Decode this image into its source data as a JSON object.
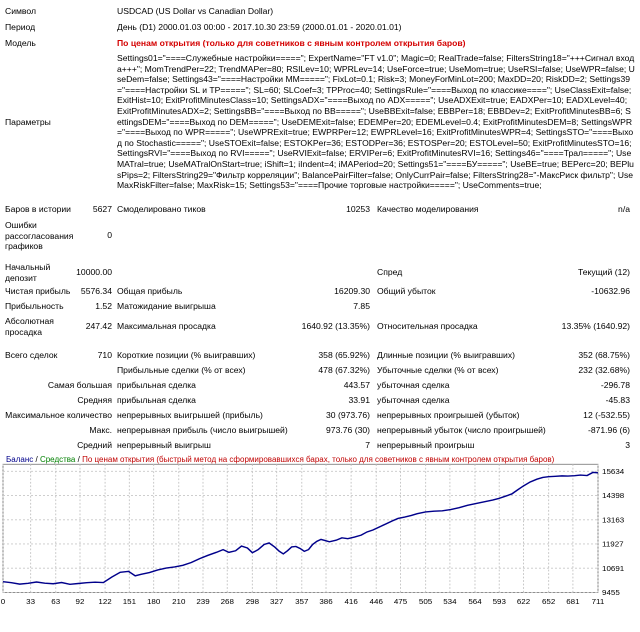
{
  "report": {
    "symbol_label": "Символ",
    "symbol_value": "USDCAD (US Dollar vs Canadian Dollar)",
    "period_label": "Период",
    "period_value": "День (D1) 2000.01.03 00:00 - 2017.10.30 23:59 (2000.01.01 - 2020.01.01)",
    "model_label": "Модель",
    "model_value": "По ценам открытия (только для советников с явным контролем открытия баров)",
    "params_label": "Параметры",
    "params_value": "Settings01=\"====Служебные настройки=====\"; ExpertName=\"FT v1.0\"; Magic=0; RealTrade=false; FiltersString18=\"+++Сигнал входа+++\"; MomTrendPer=22; TrendMAPer=80; RSILev=10; WPRLev=14; UseForce=true; UseMom=true; UseRSI=false; UseWPR=false; UseDem=false; Settings43=\"====Настройки ММ=====\"; FixLot=0.1; Risk=3; MoneyForMinLot=200; MaxDD=20; RiskDD=2; Settings39=\"====Настройки SL и TP=====\"; SL=60; SLCoef=3; TPProc=40; SettingsRule=\"====Выход по классике====\"; UseClassExit=false; ExitHist=10; ExitProfitMinutesClass=10; SettingsADX=\"====Выход по ADX=====\"; UseADXExit=true; EADXPer=10; EADXLevel=40; ExitProfitMinutesADX=2; SettingsBB=\"====Выход по BB=====\"; UseBBExit=false; EBBPer=18; EBBDev=2; ExitProfitMinutesBB=6; SettingsDEM=\"====Выход по DEM=====\"; UseDEMExit=false; EDEMPer=20; EDEMLevel=0.4; ExitProfitMinutesDEM=8; SettingsWPR=\"====Выход по WPR=====\"; UseWPRExit=true; EWPRPer=12; EWPRLevel=16; ExitProfitMinutesWPR=4; SettingsSTO=\"====Выход по Stochastic=====\"; UseSTOExit=false; ESTOKPer=36; ESTODPer=36; ESTOSPer=20; ESTOLevel=50; ExitProfitMinutesSTO=16; SettingsRVI=\"====Выход по RVI=====\"; UseRVIExit=false; ERVIPer=6; ExitProfitMinutesRVI=16; Settings46=\"====Трал=====\"; UseMATral=true; UseMATralOnStart=true; iShift=1; iIndent=4; iMAPeriod=20; Settings51=\"====БУ=====\"; UseBE=true; BEPerc=20; BEPlusPips=2; FiltersString29=\"Фильтр корреляции\"; BalancePairFilter=false; OnlyCurrPair=false; FiltersString28=\"-МаксРиск фильтр\"; UseMaxRiskFilter=false; MaxRisk=15; Settings53=\"====Прочие торговые настройки=====\"; UseComments=true;",
    "bars_label": "Баров в истории",
    "bars_value": "5627",
    "ticks_label": "Смоделировано тиков",
    "ticks_value": "10253",
    "quality_label": "Качество моделирования",
    "quality_value": "n/a",
    "errors_label": "Ошибки рассогласования графиков",
    "errors_value": "0",
    "deposit_label": "Начальный депозит",
    "deposit_value": "10000.00",
    "spread_label": "Спред",
    "spread_value": "Текущий (12)",
    "netprofit_label": "Чистая прибыль",
    "netprofit_value": "5576.34",
    "grossprofit_label": "Общая прибыль",
    "grossprofit_value": "16209.30",
    "grossloss_label": "Общий убыток",
    "grossloss_value": "-10632.96",
    "pf_label": "Прибыльность",
    "pf_value": "1.52",
    "expected_label": "Матожидание выигрыша",
    "expected_value": "7.85",
    "absdd_label": "Абсолютная просадка",
    "absdd_value": "247.42",
    "maxdd_label": "Максимальная просадка",
    "maxdd_value": "1640.92 (13.35%)",
    "reldd_label": "Относительная просадка",
    "reldd_value": "13.35% (1640.92)",
    "total_label": "Всего сделок",
    "total_value": "710",
    "short_label": "Короткие позиции (% выигравших)",
    "short_value": "358 (65.92%)",
    "long_label": "Длинные позиции (% выигравших)",
    "long_value": "352 (68.75%)",
    "profit_trades_label": "Прибыльные сделки (% от всех)",
    "profit_trades_value": "478 (67.32%)",
    "loss_trades_label": "Убыточные сделки (% от всех)",
    "loss_trades_value": "232 (32.68%)",
    "largest_label": "Самая большая",
    "largest_profit_label": "прибыльная сделка",
    "largest_profit_value": "443.57",
    "largest_loss_label": "убыточная сделка",
    "largest_loss_value": "-296.78",
    "average_label": "Средняя",
    "average_profit_label": "прибыльная сделка",
    "average_profit_value": "33.91",
    "average_loss_label": "убыточная сделка",
    "average_loss_value": "-45.83",
    "maxcount_label": "Максимальное количество",
    "maxcons_wins_label": "непрерывных выигрышей (прибыль)",
    "maxcons_wins_value": "30 (973.76)",
    "maxcons_losses_label": "непрерывных проигрышей (убыток)",
    "maxcons_losses_value": "12 (-532.55)",
    "maximal_label": "Макс.",
    "maxcons_profit_label": "непрерывная прибыль (число выигрышей)",
    "maxcons_profit_value": "973.76 (30)",
    "maxcons_loss_label": "непрерывный убыток (число проигрышей)",
    "maxcons_loss_value": "-871.96 (6)",
    "avg_label": "Средний",
    "avg_wins_label": "непрерывный выигрыш",
    "avg_wins_value": "7",
    "avg_losses_label": "непрерывный проигрыш",
    "avg_losses_value": "3"
  },
  "chart_header": {
    "balance": "Баланс",
    "sep": "/",
    "funds": "Средства",
    "mode": "По ценам открытия (быстрый метод на сформировавшихся барах, только для советников с явным контролем открытия баров)"
  },
  "colors": {
    "balance_line": "#00008b",
    "grid": "#c8c8c8",
    "mode_text": "#c00000"
  },
  "chart_data": {
    "type": "line",
    "series": [
      {
        "name": "Баланс"
      }
    ],
    "x_ticks": [
      "0",
      "33",
      "63",
      "92",
      "122",
      "151",
      "180",
      "210",
      "239",
      "268",
      "298",
      "327",
      "357",
      "386",
      "416",
      "446",
      "475",
      "505",
      "534",
      "564",
      "593",
      "622",
      "652",
      "681",
      "711"
    ],
    "y_ticks": [
      "15634",
      "14398",
      "13163",
      "11927",
      "10691",
      "9455"
    ],
    "ylim": [
      9455,
      15634
    ],
    "xlim": [
      0,
      711
    ],
    "points": [
      [
        0,
        10000
      ],
      [
        10,
        9950
      ],
      [
        20,
        9880
      ],
      [
        30,
        9920
      ],
      [
        40,
        9990
      ],
      [
        50,
        9930
      ],
      [
        60,
        9900
      ],
      [
        70,
        9960
      ],
      [
        80,
        9870
      ],
      [
        90,
        9910
      ],
      [
        100,
        9950
      ],
      [
        110,
        9980
      ],
      [
        120,
        9960
      ],
      [
        130,
        10240
      ],
      [
        140,
        10480
      ],
      [
        150,
        10530
      ],
      [
        158,
        10300
      ],
      [
        165,
        10380
      ],
      [
        175,
        10470
      ],
      [
        185,
        10600
      ],
      [
        195,
        10700
      ],
      [
        205,
        10760
      ],
      [
        215,
        10840
      ],
      [
        225,
        10980
      ],
      [
        235,
        11180
      ],
      [
        245,
        11350
      ],
      [
        255,
        11500
      ],
      [
        263,
        11640
      ],
      [
        270,
        11500
      ],
      [
        278,
        11580
      ],
      [
        285,
        11820
      ],
      [
        292,
        11720
      ],
      [
        298,
        11480
      ],
      [
        305,
        11640
      ],
      [
        312,
        11900
      ],
      [
        318,
        11980
      ],
      [
        325,
        11760
      ],
      [
        330,
        11560
      ],
      [
        335,
        11420
      ],
      [
        340,
        11580
      ],
      [
        345,
        11780
      ],
      [
        350,
        11800
      ],
      [
        355,
        11700
      ],
      [
        360,
        11550
      ],
      [
        365,
        11640
      ],
      [
        370,
        11900
      ],
      [
        375,
        12060
      ],
      [
        380,
        12160
      ],
      [
        385,
        12100
      ],
      [
        390,
        12040
      ],
      [
        398,
        12120
      ],
      [
        405,
        12240
      ],
      [
        412,
        12200
      ],
      [
        420,
        12280
      ],
      [
        428,
        12380
      ],
      [
        435,
        12540
      ],
      [
        442,
        12640
      ],
      [
        450,
        12800
      ],
      [
        458,
        12960
      ],
      [
        465,
        13100
      ],
      [
        472,
        13230
      ],
      [
        480,
        13300
      ],
      [
        488,
        13380
      ],
      [
        495,
        13470
      ],
      [
        505,
        13560
      ],
      [
        515,
        13600
      ],
      [
        525,
        13620
      ],
      [
        535,
        13680
      ],
      [
        545,
        13780
      ],
      [
        555,
        13900
      ],
      [
        565,
        13990
      ],
      [
        575,
        14080
      ],
      [
        585,
        14170
      ],
      [
        592,
        14240
      ],
      [
        600,
        14360
      ],
      [
        608,
        14480
      ],
      [
        615,
        14690
      ],
      [
        622,
        14890
      ],
      [
        630,
        15090
      ],
      [
        638,
        15230
      ],
      [
        645,
        15320
      ],
      [
        652,
        15360
      ],
      [
        660,
        15380
      ],
      [
        668,
        15400
      ],
      [
        675,
        15390
      ],
      [
        683,
        15410
      ],
      [
        690,
        15440
      ],
      [
        698,
        15420
      ],
      [
        705,
        15580
      ],
      [
        711,
        15560
      ]
    ]
  }
}
